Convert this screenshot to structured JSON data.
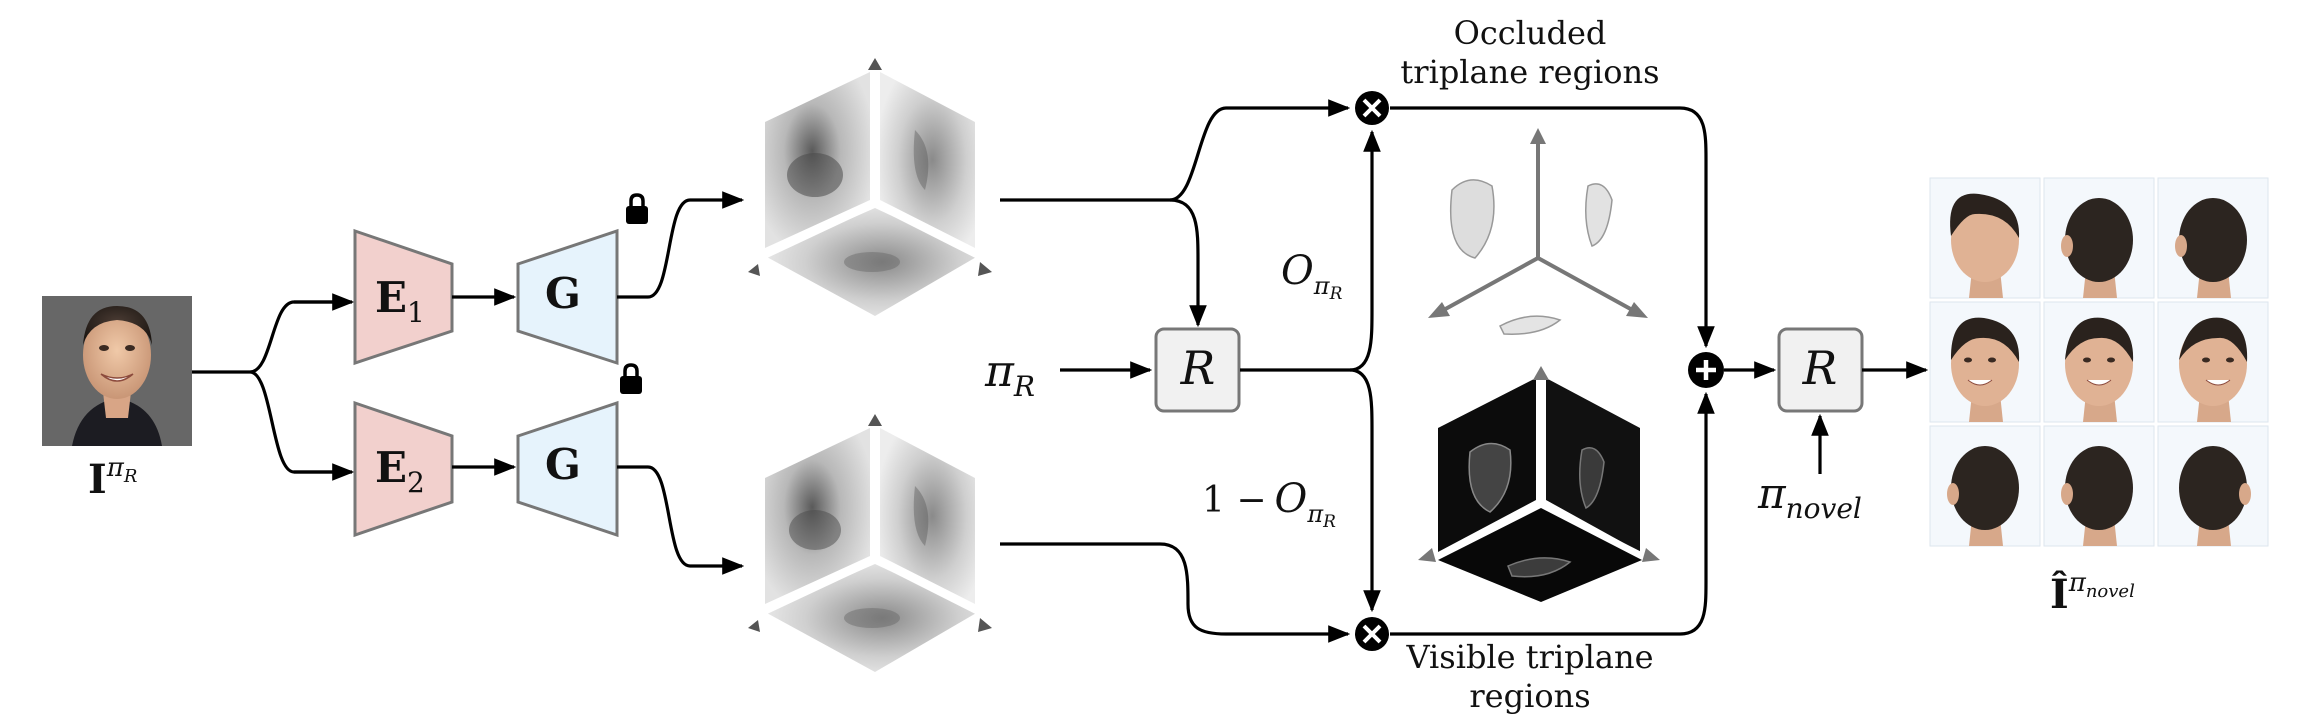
{
  "input": {
    "label_base": "I",
    "label_sup_pi": "π",
    "label_sup_sub": "R"
  },
  "encoders": [
    {
      "letter": "E",
      "sub": "1"
    },
    {
      "letter": "E",
      "sub": "2"
    }
  ],
  "generators": [
    {
      "letter": "G"
    },
    {
      "letter": "G"
    }
  ],
  "occlusion": {
    "o_symbol": "O",
    "o_sub_pi": "π",
    "o_sub_sub": "R",
    "inverse_prefix": "1 −"
  },
  "camera": {
    "pi": "π",
    "pi_sub": "R",
    "novel_pi": "π",
    "novel_sub": "novel"
  },
  "renderer": {
    "symbol": "R"
  },
  "annotations": {
    "occluded_line1": "Occluded",
    "occluded_line2": "triplane regions",
    "visible_line1": "Visible triplane",
    "visible_line2": "regions"
  },
  "operators": {
    "multiply": "×",
    "add": "+"
  },
  "output": {
    "label_base": "Î",
    "label_sup_pi": "π",
    "label_sup_sub": "novel"
  },
  "colors": {
    "encoder_fill": "#f2d0cd",
    "generator_fill": "#e6f3fc",
    "renderer_fill": "#f1f1f1",
    "stroke": "#777777"
  }
}
